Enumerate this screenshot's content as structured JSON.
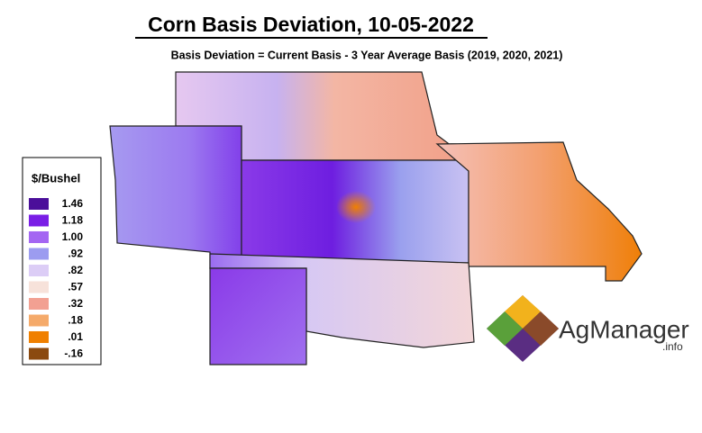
{
  "header": {
    "title": "Corn Basis Deviation, 10-05-2022",
    "subtitle": "Basis Deviation = Current Basis - 3 Year Average Basis (2019, 2020, 2021)"
  },
  "legend": {
    "title": "$/Bushel",
    "items": [
      {
        "label": "1.46",
        "color": "#4b0f9a"
      },
      {
        "label": "1.18",
        "color": "#7a1ee6"
      },
      {
        "label": "1.00",
        "color": "#a466f2"
      },
      {
        "label": ".92",
        "color": "#9c9cf0"
      },
      {
        "label": ".82",
        "color": "#dccdf6"
      },
      {
        "label": ".57",
        "color": "#f7e2da"
      },
      {
        "label": ".32",
        "color": "#f2a092"
      },
      {
        "label": ".18",
        "color": "#f5aa6a"
      },
      {
        "label": ".01",
        "color": "#f08000"
      },
      {
        "label": "-.16",
        "color": "#8b4a10"
      }
    ]
  },
  "logo": {
    "name": "AgManager",
    "suffix": ".info"
  }
}
